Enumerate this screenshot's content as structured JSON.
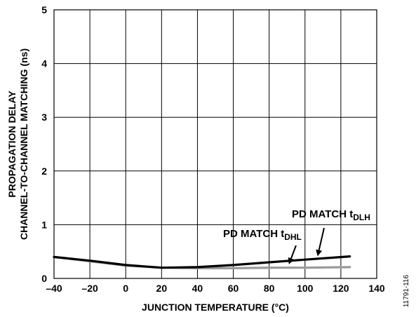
{
  "chart_data": {
    "type": "line",
    "xlabel": "JUNCTION TEMPERATURE (°C)",
    "ylabel_lines": [
      "PROPAGATION DELAY",
      "CHANNEL-TO-CHANNEL MATCHING (ns)"
    ],
    "xlim": [
      -40,
      140
    ],
    "ylim": [
      0,
      5
    ],
    "x_ticks": [
      "–40",
      "–20",
      "0",
      "20",
      "40",
      "60",
      "80",
      "100",
      "120",
      "140"
    ],
    "y_ticks": [
      "0",
      "1",
      "2",
      "3",
      "4",
      "5"
    ],
    "grid": true,
    "series": [
      {
        "name": "PD MATCH tDLH",
        "color": "#000000",
        "x": [
          -40,
          -20,
          0,
          20,
          40,
          60,
          80,
          100,
          125
        ],
        "y": [
          0.4,
          0.33,
          0.25,
          0.2,
          0.21,
          0.25,
          0.3,
          0.35,
          0.41
        ]
      },
      {
        "name": "PD MATCH tDHL",
        "color": "#9a9a9a",
        "x": [
          -40,
          -20,
          0,
          20,
          40,
          60,
          80,
          100,
          125
        ],
        "y": [
          0.4,
          0.32,
          0.24,
          0.2,
          0.19,
          0.19,
          0.2,
          0.2,
          0.21
        ]
      }
    ],
    "annotations": [
      {
        "series": "PD MATCH tDLH",
        "text": "PD MATCH t",
        "subscript": "DLH",
        "arrow_to": [
          107,
          0.36
        ]
      },
      {
        "series": "PD MATCH tDHL",
        "text": "PD MATCH t",
        "subscript": "DHL",
        "arrow_to": [
          91,
          0.21
        ]
      }
    ]
  },
  "figure_id": "11791-116"
}
